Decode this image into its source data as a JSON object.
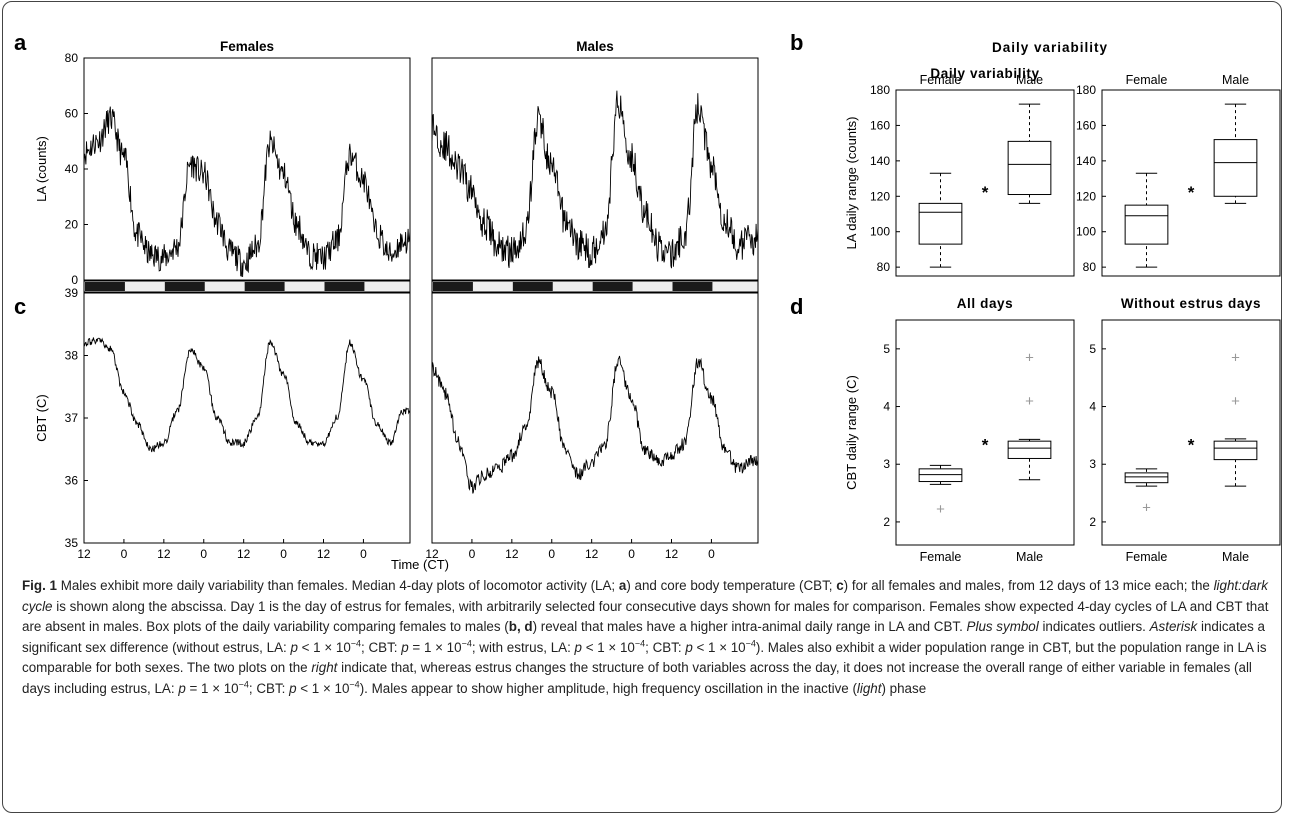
{
  "panel_letters": [
    "a",
    "b",
    "c",
    "d"
  ],
  "chart_data": [
    {
      "id": "a",
      "type": "line",
      "title": "Females",
      "ylabel": "LA (counts)",
      "ylim": [
        0,
        80
      ],
      "yticks": [
        0,
        20,
        40,
        60,
        80
      ],
      "x": [
        12,
        16,
        20,
        24,
        28,
        32,
        36,
        40,
        44,
        48,
        52,
        56,
        60,
        64,
        68,
        72,
        76,
        80,
        84,
        88,
        92,
        96,
        100,
        104,
        108
      ],
      "xtick_labels": [
        "12",
        "0",
        "12",
        "0",
        "12",
        "0",
        "12",
        "0"
      ],
      "values": [
        46,
        50,
        58,
        44,
        16,
        9,
        8,
        12,
        42,
        38,
        21,
        10,
        6,
        12,
        49,
        38,
        20,
        9,
        8,
        14,
        45,
        36,
        17,
        9,
        14
      ]
    },
    {
      "id": "a2",
      "type": "line",
      "title": "Males",
      "ylim": [
        0,
        80
      ],
      "x": [
        12,
        16,
        20,
        24,
        28,
        32,
        36,
        40,
        44,
        48,
        52,
        56,
        60,
        64,
        68,
        72,
        76,
        80,
        84,
        88,
        92,
        96,
        100,
        104,
        108
      ],
      "xtick_labels": [
        "12",
        "0",
        "12",
        "0",
        "12",
        "0",
        "12",
        "0"
      ],
      "values": [
        55,
        48,
        40,
        32,
        20,
        12,
        10,
        17,
        58,
        40,
        22,
        13,
        10,
        18,
        64,
        44,
        24,
        12,
        9,
        16,
        62,
        42,
        22,
        12,
        15
      ]
    },
    {
      "id": "c",
      "type": "line",
      "ylabel": "CBT (C)",
      "ylim": [
        35,
        39
      ],
      "yticks": [
        35,
        36,
        37,
        38,
        39
      ],
      "x": [
        12,
        16,
        20,
        24,
        28,
        32,
        36,
        40,
        44,
        48,
        52,
        56,
        60,
        64,
        68,
        72,
        76,
        80,
        84,
        88,
        92,
        96,
        100,
        104,
        108
      ],
      "xtick_labels": [
        "12",
        "0",
        "12",
        "0",
        "12",
        "0",
        "12",
        "0"
      ],
      "values": [
        38.2,
        38.25,
        38.1,
        37.4,
        36.9,
        36.5,
        36.6,
        37.1,
        38.1,
        37.8,
        37.0,
        36.6,
        36.6,
        37.0,
        38.2,
        37.7,
        36.9,
        36.6,
        36.6,
        37.0,
        38.2,
        37.6,
        36.9,
        36.6,
        37.1
      ]
    },
    {
      "id": "c2",
      "type": "line",
      "xlabel": "Time (CT)",
      "ylim": [
        35,
        39
      ],
      "x": [
        12,
        16,
        20,
        24,
        28,
        32,
        36,
        40,
        44,
        48,
        52,
        56,
        60,
        64,
        68,
        72,
        76,
        80,
        84,
        88,
        92,
        96,
        100,
        104,
        108
      ],
      "xtick_labels": [
        "12",
        "0",
        "12",
        "0",
        "12",
        "0",
        "12",
        "0"
      ],
      "values": [
        37.8,
        37.4,
        36.6,
        35.9,
        36.1,
        36.2,
        36.4,
        36.8,
        37.9,
        37.4,
        36.5,
        36.1,
        36.3,
        36.6,
        37.9,
        37.3,
        36.5,
        36.3,
        36.4,
        36.6,
        37.9,
        37.3,
        36.5,
        36.2,
        36.3
      ]
    },
    {
      "id": "b",
      "type": "box",
      "title": "Daily variability",
      "ylabel": "LA daily range (counts)",
      "ylim": [
        75,
        180
      ],
      "yticks": [
        80,
        100,
        120,
        140,
        160,
        180
      ],
      "categories": [
        "Female",
        "Male"
      ],
      "boxes": [
        {
          "min": 80,
          "q1": 93,
          "median": 111,
          "q3": 116,
          "max": 133,
          "outliers": []
        },
        {
          "min": 116,
          "q1": 121,
          "median": 138,
          "q3": 151,
          "max": 172,
          "outliers": []
        }
      ],
      "significance": "*"
    },
    {
      "id": "b2",
      "type": "box",
      "ylim": [
        75,
        180
      ],
      "yticks": [
        80,
        100,
        120,
        140,
        160,
        180
      ],
      "categories": [
        "Female",
        "Male"
      ],
      "boxes": [
        {
          "min": 80,
          "q1": 93,
          "median": 109,
          "q3": 115,
          "max": 133,
          "outliers": []
        },
        {
          "min": 116,
          "q1": 120,
          "median": 139,
          "q3": 152,
          "max": 172,
          "outliers": []
        }
      ],
      "significance": "*"
    },
    {
      "id": "d",
      "type": "box",
      "title": "All days",
      "ylabel": "CBT daily range (C)",
      "ylim": [
        1.6,
        5.5
      ],
      "yticks": [
        2,
        3,
        4,
        5
      ],
      "categories": [
        "Female",
        "Male"
      ],
      "boxes": [
        {
          "min": 2.65,
          "q1": 2.7,
          "median": 2.82,
          "q3": 2.92,
          "max": 2.98,
          "outliers": [
            2.22
          ]
        },
        {
          "min": 2.73,
          "q1": 3.1,
          "median": 3.28,
          "q3": 3.4,
          "max": 3.43,
          "outliers": [
            4.1,
            4.85
          ]
        }
      ],
      "significance": "*"
    },
    {
      "id": "d2",
      "type": "box",
      "title": "Without estrus days",
      "ylim": [
        1.6,
        5.5
      ],
      "yticks": [
        2,
        3,
        4,
        5
      ],
      "categories": [
        "Female",
        "Male"
      ],
      "boxes": [
        {
          "min": 2.62,
          "q1": 2.68,
          "median": 2.78,
          "q3": 2.85,
          "max": 2.92,
          "outliers": [
            2.25
          ]
        },
        {
          "min": 2.62,
          "q1": 3.08,
          "median": 3.28,
          "q3": 3.4,
          "max": 3.44,
          "outliers": [
            4.1,
            4.85
          ]
        }
      ],
      "significance": "*"
    }
  ],
  "caption": {
    "fig_label": "Fig. 1",
    "s1": " Males exhibit more daily variability than females. Median 4-day plots of locomotor activity (LA; ",
    "a": "a",
    "s2": ") and core body temperature (CBT; ",
    "c": "c",
    "s3": ") for all females and males, from 12 days of 13 mice each; the ",
    "ldc": "light:dark cycle",
    "s4": " is shown along the abscissa. Day 1 is the day of estrus for females, with arbitrarily selected four consecutive days shown for males for comparison. Females show expected 4-day cycles of LA and CBT that are absent in males. Box plots of the daily variability comparing females to males (",
    "bd": "b, d",
    "s5": ") reveal that males have a higher intra-animal daily range in LA and CBT. ",
    "plus": "Plus symbol",
    "s6": " indicates outliers. ",
    "ast": "Asterisk",
    "s7": " indicates a significant sex difference (without estrus, LA: ",
    "p": "p",
    "lt1": " < 1 × 10",
    "exp": "−4",
    "cbt1": "; CBT: ",
    "eq1": " = 1 × 10",
    "s8": "; with estrus, LA: ",
    "lt2": " < 1 × 10",
    "cbt2": "; CBT: ",
    "lt3": " < 1 × 10",
    "s9": "). Males also exhibit a wider population range in CBT, but the population range in LA is comparable for both sexes. The two plots on the ",
    "right": "right",
    "s10": " indicate that, whereas estrus changes the structure of both variables across the day, it does not increase the overall range of either variable in females (all days including estrus, LA: ",
    "eq2": " = 1 × 10",
    "s11": "; CBT: ",
    "lt4": " < 1 × 10",
    "s12": "). Males appear to show higher amplitude, high frequency oscillation in the inactive (",
    "light": "light",
    "s13": ") phase"
  }
}
